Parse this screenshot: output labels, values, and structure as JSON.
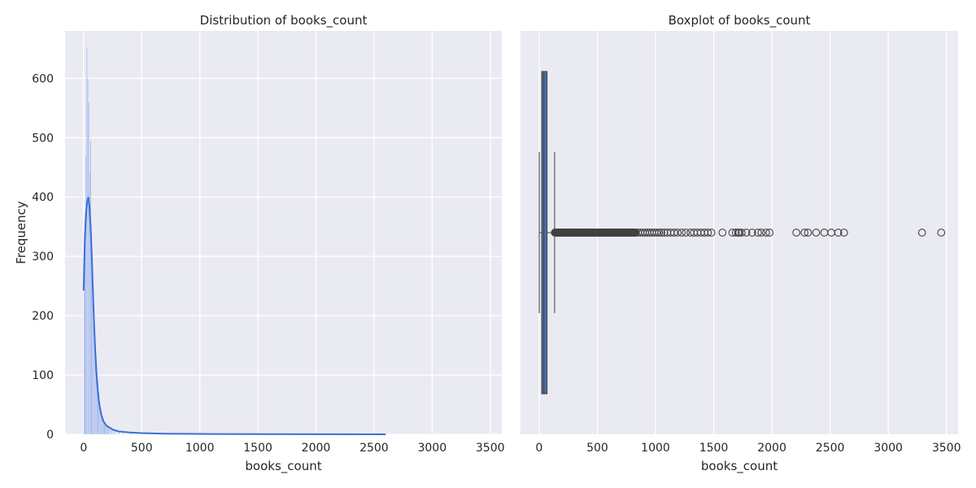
{
  "colors": {
    "panel_bg": "#EAEAF2",
    "grid": "#FFFFFF",
    "hist_fill": "#8EA8E6",
    "kde_line": "#3A6FD8",
    "box_fill": "#4C72B0",
    "box_edge": "#404040",
    "outlier_edge": "#404040"
  },
  "chart_data": [
    {
      "type": "histogram",
      "title": "Distribution of books_count",
      "xlabel": "books_count",
      "ylabel": "Frequency",
      "xlim": [
        -160,
        3600
      ],
      "ylim": [
        0,
        680
      ],
      "xticks": [
        0,
        500,
        1000,
        1500,
        2000,
        2500,
        3000,
        3500
      ],
      "yticks": [
        0,
        100,
        200,
        300,
        400,
        500,
        600
      ],
      "grid": true,
      "bin_width": 8,
      "bins": [
        [
          0,
          240
        ],
        [
          8,
          350
        ],
        [
          16,
          470
        ],
        [
          24,
          652
        ],
        [
          32,
          600
        ],
        [
          40,
          560
        ],
        [
          48,
          440
        ],
        [
          56,
          495
        ],
        [
          64,
          330
        ],
        [
          72,
          290
        ],
        [
          80,
          240
        ],
        [
          88,
          200
        ],
        [
          96,
          160
        ],
        [
          104,
          130
        ],
        [
          112,
          100
        ],
        [
          120,
          85
        ],
        [
          128,
          70
        ],
        [
          136,
          55
        ],
        [
          144,
          45
        ],
        [
          152,
          38
        ],
        [
          160,
          30
        ],
        [
          168,
          26
        ],
        [
          176,
          22
        ],
        [
          184,
          18
        ],
        [
          192,
          15
        ],
        [
          200,
          13
        ],
        [
          210,
          11
        ],
        [
          220,
          9
        ],
        [
          235,
          8
        ],
        [
          250,
          7
        ],
        [
          270,
          6
        ],
        [
          300,
          5
        ],
        [
          340,
          4
        ],
        [
          400,
          3
        ],
        [
          500,
          2
        ],
        [
          650,
          2
        ],
        [
          800,
          1
        ],
        [
          1000,
          1
        ],
        [
          1300,
          1
        ],
        [
          1700,
          1
        ]
      ],
      "kde": {
        "x": [
          0,
          10,
          20,
          30,
          40,
          50,
          60,
          70,
          80,
          90,
          100,
          110,
          120,
          130,
          140,
          150,
          170,
          200,
          250,
          300,
          400,
          500,
          700,
          1000,
          1500,
          2000,
          2600
        ],
        "y": [
          242,
          330,
          372,
          392,
          400,
          385,
          350,
          300,
          240,
          185,
          140,
          105,
          78,
          58,
          44,
          34,
          22,
          14,
          8,
          5,
          3,
          2,
          1,
          0.6,
          0.3,
          0.1,
          0
        ]
      }
    },
    {
      "type": "boxplot",
      "title": "Boxplot of books_count",
      "xlabel": "books_count",
      "xlim": [
        -160,
        3600
      ],
      "xticks": [
        0,
        500,
        1000,
        1500,
        2000,
        2500,
        3000,
        3500
      ],
      "grid": true,
      "whisker_low": 1,
      "q1": 23,
      "median": 40,
      "q3": 67,
      "whisker_high": 133,
      "outliers": [
        135,
        140,
        145,
        150,
        155,
        160,
        165,
        170,
        175,
        180,
        185,
        190,
        195,
        200,
        205,
        210,
        215,
        220,
        225,
        230,
        235,
        240,
        245,
        250,
        255,
        260,
        265,
        270,
        275,
        280,
        285,
        290,
        295,
        300,
        305,
        310,
        315,
        320,
        325,
        330,
        335,
        340,
        345,
        350,
        355,
        360,
        365,
        370,
        375,
        380,
        385,
        390,
        395,
        400,
        405,
        410,
        415,
        420,
        425,
        430,
        435,
        440,
        445,
        450,
        455,
        460,
        465,
        470,
        475,
        480,
        485,
        490,
        495,
        500,
        505,
        510,
        515,
        520,
        525,
        530,
        535,
        540,
        545,
        550,
        555,
        560,
        565,
        570,
        575,
        580,
        585,
        590,
        595,
        600,
        605,
        610,
        615,
        620,
        625,
        630,
        635,
        640,
        645,
        650,
        655,
        660,
        665,
        670,
        675,
        680,
        685,
        690,
        695,
        700,
        705,
        710,
        715,
        720,
        725,
        730,
        735,
        740,
        745,
        750,
        755,
        760,
        765,
        770,
        775,
        780,
        785,
        790,
        795,
        800,
        805,
        810,
        815,
        820,
        825,
        830,
        850,
        870,
        890,
        910,
        930,
        950,
        970,
        990,
        1010,
        1030,
        1050,
        1075,
        1100,
        1130,
        1160,
        1190,
        1225,
        1260,
        1300,
        1330,
        1360,
        1390,
        1420,
        1450,
        1480,
        1575,
        1660,
        1690,
        1710,
        1720,
        1740,
        1780,
        1830,
        1880,
        1910,
        1950,
        1980,
        2210,
        2280,
        2310,
        2380,
        2450,
        2510,
        2570,
        2620,
        3290,
        3455
      ]
    }
  ]
}
